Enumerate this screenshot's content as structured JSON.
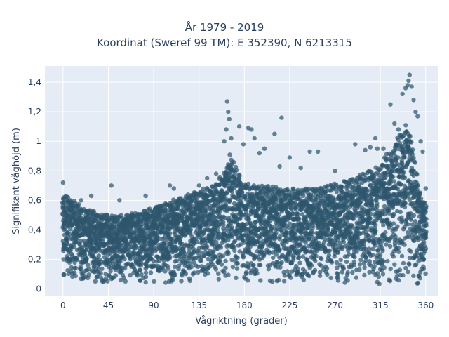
{
  "chart_data": {
    "type": "scatter",
    "title_lines": [
      "År 1979 - 2019",
      "Koordinat (Sweref 99 TM): E 352390, N 6213315"
    ],
    "xlabel": "Vågriktning (grader)",
    "ylabel": "Signifikant våghöjd (m)",
    "xlim": [
      -18,
      372
    ],
    "ylim": [
      -0.05,
      1.51
    ],
    "xticks": [
      0,
      45,
      90,
      135,
      180,
      225,
      270,
      315,
      360
    ],
    "xtick_labels": [
      "0",
      "45",
      "90",
      "135",
      "180",
      "225",
      "270",
      "315",
      "360"
    ],
    "yticks": [
      0,
      0.2,
      0.4,
      0.6,
      0.8,
      1.0,
      1.2,
      1.4
    ],
    "ytick_labels": [
      "0",
      "0,2",
      "0,4",
      "0,6",
      "0,8",
      "1",
      "1,2",
      "1,4"
    ],
    "grid": true,
    "colors": {
      "marker": "#2e566e",
      "plot_bg": "#e5ecf6",
      "grid": "#ffffff",
      "text": "#2a3f5f"
    },
    "upper_envelope": [
      [
        0,
        0.64
      ],
      [
        10,
        0.6
      ],
      [
        20,
        0.56
      ],
      [
        30,
        0.53
      ],
      [
        45,
        0.5
      ],
      [
        60,
        0.5
      ],
      [
        75,
        0.52
      ],
      [
        90,
        0.55
      ],
      [
        105,
        0.6
      ],
      [
        120,
        0.63
      ],
      [
        135,
        0.67
      ],
      [
        150,
        0.7
      ],
      [
        160,
        0.8
      ],
      [
        165,
        0.92
      ],
      [
        170,
        0.85
      ],
      [
        180,
        0.72
      ],
      [
        200,
        0.7
      ],
      [
        225,
        0.68
      ],
      [
        250,
        0.68
      ],
      [
        270,
        0.72
      ],
      [
        290,
        0.75
      ],
      [
        310,
        0.83
      ],
      [
        320,
        0.9
      ],
      [
        330,
        1.0
      ],
      [
        340,
        1.12
      ],
      [
        345,
        1.05
      ],
      [
        350,
        0.85
      ],
      [
        355,
        0.62
      ],
      [
        360,
        0.6
      ]
    ],
    "outliers": [
      [
        0,
        0.72
      ],
      [
        5,
        0.62
      ],
      [
        18,
        0.6
      ],
      [
        28,
        0.63
      ],
      [
        48,
        0.7
      ],
      [
        56,
        0.6
      ],
      [
        82,
        0.63
      ],
      [
        106,
        0.7
      ],
      [
        110,
        0.68
      ],
      [
        135,
        0.7
      ],
      [
        143,
        0.75
      ],
      [
        152,
        0.78
      ],
      [
        160,
        1.0
      ],
      [
        162,
        1.08
      ],
      [
        163,
        1.27
      ],
      [
        164,
        1.2
      ],
      [
        165,
        1.15
      ],
      [
        167,
        1.02
      ],
      [
        175,
        1.1
      ],
      [
        179,
        0.98
      ],
      [
        184,
        1.09
      ],
      [
        187,
        1.08
      ],
      [
        190,
        1.02
      ],
      [
        195,
        0.92
      ],
      [
        200,
        0.95
      ],
      [
        210,
        1.05
      ],
      [
        215,
        0.83
      ],
      [
        217,
        1.16
      ],
      [
        225,
        0.89
      ],
      [
        236,
        0.82
      ],
      [
        245,
        0.93
      ],
      [
        253,
        0.93
      ],
      [
        270,
        0.8
      ],
      [
        290,
        0.98
      ],
      [
        300,
        0.94
      ],
      [
        305,
        0.96
      ],
      [
        310,
        1.02
      ],
      [
        312,
        0.95
      ],
      [
        318,
        0.95
      ],
      [
        325,
        1.25
      ],
      [
        329,
        1.12
      ],
      [
        333,
        1.08
      ],
      [
        337,
        1.32
      ],
      [
        340,
        1.36
      ],
      [
        342,
        1.38
      ],
      [
        343,
        1.41
      ],
      [
        344,
        1.45
      ],
      [
        346,
        1.37
      ],
      [
        348,
        1.28
      ],
      [
        350,
        1.2
      ],
      [
        352,
        1.17
      ],
      [
        355,
        1.0
      ],
      [
        357,
        0.93
      ],
      [
        360,
        0.68
      ]
    ]
  }
}
